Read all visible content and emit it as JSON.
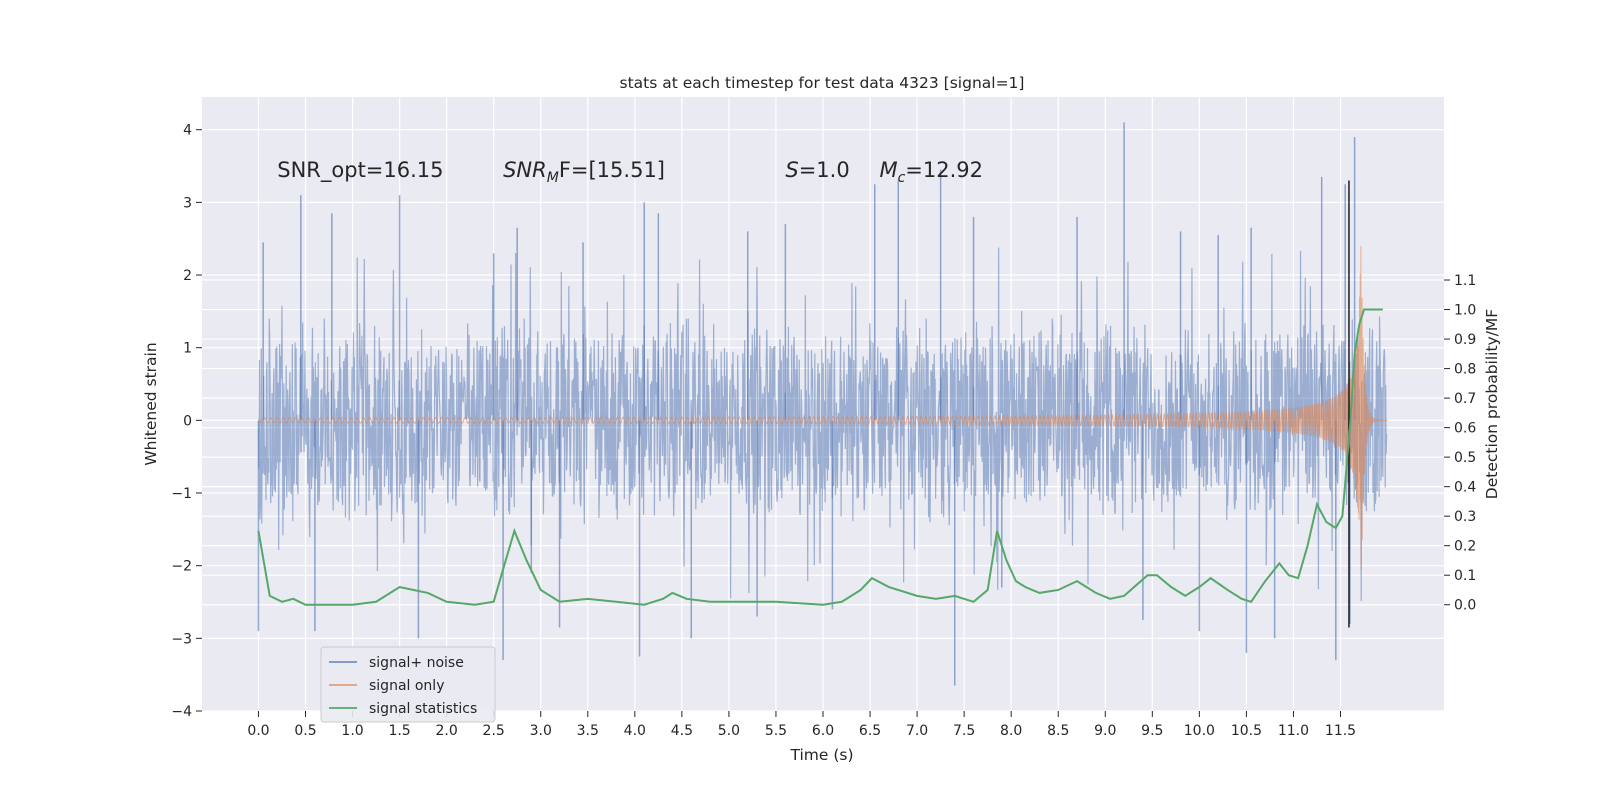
{
  "chart_data": {
    "type": "line",
    "title": "stats at each timestep for test data 4323 [signal=1]",
    "xlabel": "Time (s)",
    "ylabel_left": "Whitened strain",
    "ylabel_right": "Detection probability/MF",
    "xlim": [
      -0.6,
      12.6
    ],
    "ylim_left": [
      -4.0,
      4.45
    ],
    "ylim_right": [
      -0.36,
      1.72
    ],
    "x_ticks": [
      0.0,
      0.5,
      1.0,
      1.5,
      2.0,
      2.5,
      3.0,
      3.5,
      4.0,
      4.5,
      5.0,
      5.5,
      6.0,
      6.5,
      7.0,
      7.5,
      8.0,
      8.5,
      9.0,
      9.5,
      10.0,
      10.5,
      11.0,
      11.5
    ],
    "x_tick_labels": [
      "0.0",
      "0.5",
      "1.0",
      "1.5",
      "2.0",
      "2.5",
      "3.0",
      "3.5",
      "4.0",
      "4.5",
      "5.0",
      "5.5",
      "6.0",
      "6.5",
      "7.0",
      "7.5",
      "8.0",
      "8.5",
      "9.0",
      "9.5",
      "10.0",
      "10.5",
      "11.0",
      "11.5"
    ],
    "y_left_ticks": [
      -4,
      -3,
      -2,
      -1,
      0,
      1,
      2,
      3,
      4
    ],
    "y_left_tick_labels": [
      "−4",
      "−3",
      "−2",
      "−1",
      "0",
      "1",
      "2",
      "3",
      "4"
    ],
    "y_right_ticks": [
      0.0,
      0.1,
      0.2,
      0.3,
      0.4,
      0.5,
      0.6,
      0.7,
      0.8,
      0.9,
      1.0,
      1.1
    ],
    "y_right_tick_labels": [
      "0.0",
      "0.1",
      "0.2",
      "0.3",
      "0.4",
      "0.5",
      "0.6",
      "0.7",
      "0.8",
      "0.9",
      "1.0",
      "1.1"
    ],
    "grid": true,
    "legend_position": "lower-left",
    "annotations": [
      {
        "pre": "SNR_opt=16.15",
        "italic": "",
        "sub": "",
        "post": "",
        "x": 0.2,
        "y": 3.35
      },
      {
        "pre": "",
        "italic": "SNR",
        "sub": "M",
        "post": "F=[15.51]",
        "x": 2.6,
        "y": 3.35
      },
      {
        "pre": "",
        "italic": "S",
        "sub": "",
        "post": "=1.0",
        "x": 5.6,
        "y": 3.35
      },
      {
        "pre": "",
        "italic": "M",
        "sub": "c",
        "post": "=12.92",
        "x": 6.6,
        "y": 3.35
      }
    ],
    "series": [
      {
        "name": "signal+ noise",
        "axis": "left",
        "color": "#4c72b0",
        "opacity": 0.5,
        "t_range": [
          0.0,
          11.99
        ],
        "core_band": [
          -1.5,
          1.4
        ],
        "spikes_up": [
          [
            0.05,
            2.45
          ],
          [
            0.45,
            3.1
          ],
          [
            0.78,
            2.85
          ],
          [
            1.5,
            3.1
          ],
          [
            2.5,
            2.3
          ],
          [
            2.75,
            2.65
          ],
          [
            3.45,
            2.45
          ],
          [
            4.1,
            3.0
          ],
          [
            4.25,
            2.85
          ],
          [
            5.2,
            2.6
          ],
          [
            5.6,
            2.7
          ],
          [
            6.55,
            3.25
          ],
          [
            6.8,
            3.3
          ],
          [
            7.25,
            3.45
          ],
          [
            7.6,
            2.8
          ],
          [
            8.7,
            2.8
          ],
          [
            9.2,
            4.1
          ],
          [
            9.8,
            2.6
          ],
          [
            10.2,
            2.55
          ],
          [
            10.55,
            2.65
          ],
          [
            11.3,
            3.35
          ],
          [
            11.55,
            3.25
          ],
          [
            11.65,
            3.9
          ]
        ],
        "spikes_down": [
          [
            0.0,
            -2.9
          ],
          [
            0.6,
            -2.9
          ],
          [
            1.7,
            -3.0
          ],
          [
            2.6,
            -3.3
          ],
          [
            2.9,
            -2.1
          ],
          [
            3.2,
            -2.85
          ],
          [
            4.05,
            -3.25
          ],
          [
            4.6,
            -3.0
          ],
          [
            5.3,
            -2.7
          ],
          [
            6.1,
            -2.6
          ],
          [
            7.4,
            -3.65
          ],
          [
            7.9,
            -2.3
          ],
          [
            9.4,
            -2.75
          ],
          [
            10.0,
            -2.9
          ],
          [
            10.5,
            -3.2
          ],
          [
            10.8,
            -3.0
          ],
          [
            11.45,
            -3.3
          ],
          [
            11.6,
            -2.8
          ]
        ]
      },
      {
        "name": "signal only",
        "axis": "left",
        "color": "#dd8452",
        "opacity": 0.6,
        "t_range": [
          0.0,
          12.0
        ],
        "chirp_start_amp": 0.02,
        "merger_time": 11.62,
        "peak_amplitude": 2.45,
        "peak_time": 11.72
      },
      {
        "name": "signal statistics",
        "axis": "right",
        "color": "#55a868",
        "x": [
          0.0,
          0.12,
          0.25,
          0.37,
          0.5,
          0.75,
          1.0,
          1.25,
          1.5,
          1.65,
          1.8,
          2.0,
          2.3,
          2.5,
          2.6,
          2.72,
          2.85,
          3.0,
          3.2,
          3.5,
          3.8,
          4.1,
          4.3,
          4.4,
          4.55,
          4.8,
          5.0,
          5.5,
          6.0,
          6.2,
          6.4,
          6.52,
          6.7,
          7.0,
          7.2,
          7.4,
          7.6,
          7.75,
          7.85,
          7.95,
          8.05,
          8.15,
          8.3,
          8.5,
          8.7,
          8.8,
          8.9,
          9.05,
          9.2,
          9.45,
          9.55,
          9.7,
          9.85,
          10.0,
          10.12,
          10.3,
          10.45,
          10.55,
          10.7,
          10.85,
          10.95,
          11.05,
          11.15,
          11.25,
          11.35,
          11.45,
          11.52,
          11.6,
          11.65,
          11.7,
          11.75,
          11.8,
          11.9,
          11.95
        ],
        "y": [
          0.25,
          0.03,
          0.01,
          0.02,
          0.0,
          0.0,
          0.0,
          0.01,
          0.06,
          0.05,
          0.04,
          0.01,
          0.0,
          0.01,
          0.12,
          0.25,
          0.15,
          0.05,
          0.01,
          0.02,
          0.01,
          0.0,
          0.02,
          0.04,
          0.02,
          0.01,
          0.01,
          0.01,
          0.0,
          0.01,
          0.05,
          0.09,
          0.06,
          0.03,
          0.02,
          0.03,
          0.01,
          0.05,
          0.25,
          0.15,
          0.08,
          0.06,
          0.04,
          0.05,
          0.08,
          0.06,
          0.04,
          0.02,
          0.03,
          0.1,
          0.1,
          0.06,
          0.03,
          0.06,
          0.09,
          0.05,
          0.02,
          0.01,
          0.08,
          0.14,
          0.1,
          0.09,
          0.2,
          0.34,
          0.28,
          0.26,
          0.3,
          0.6,
          0.85,
          0.95,
          1.0,
          1.0,
          1.0,
          1.0
        ]
      }
    ],
    "vertical_marker": {
      "x": 11.59,
      "color": "#000000"
    }
  }
}
